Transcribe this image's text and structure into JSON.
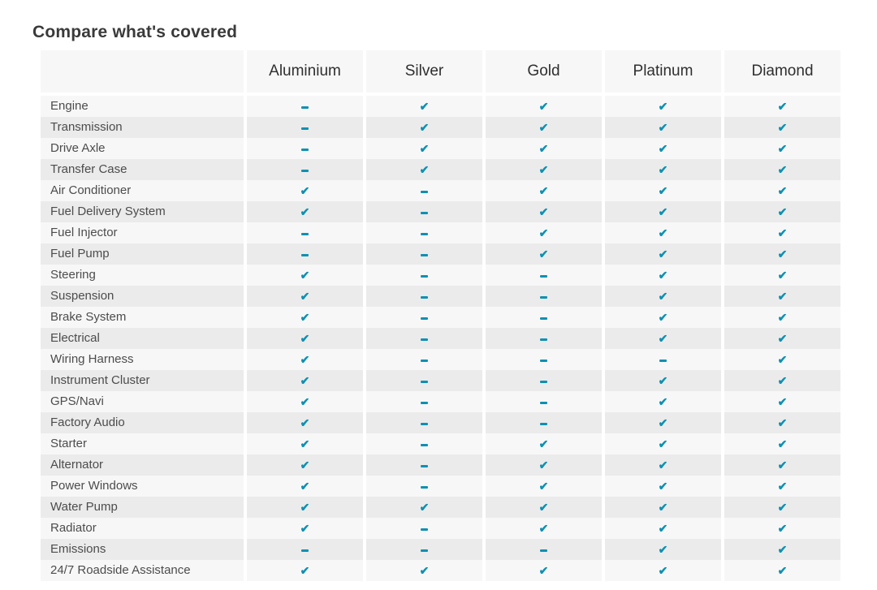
{
  "page": {
    "title": "Compare what's covered"
  },
  "accent_color": "#0E90B2",
  "legend": {
    "check_means": "covered",
    "dash_means": "not covered"
  },
  "table": {
    "columns": [
      "Aluminium",
      "Silver",
      "Gold",
      "Platinum",
      "Diamond"
    ],
    "rows": [
      {
        "label": "Engine",
        "values": [
          "dash",
          "check",
          "check",
          "check",
          "check"
        ]
      },
      {
        "label": "Transmission",
        "values": [
          "dash",
          "check",
          "check",
          "check",
          "check"
        ]
      },
      {
        "label": "Drive Axle",
        "values": [
          "dash",
          "check",
          "check",
          "check",
          "check"
        ]
      },
      {
        "label": "Transfer Case",
        "values": [
          "dash",
          "check",
          "check",
          "check",
          "check"
        ]
      },
      {
        "label": "Air Conditioner",
        "values": [
          "check",
          "dash",
          "check",
          "check",
          "check"
        ]
      },
      {
        "label": "Fuel Delivery System",
        "values": [
          "check",
          "dash",
          "check",
          "check",
          "check"
        ]
      },
      {
        "label": "Fuel Injector",
        "values": [
          "dash",
          "dash",
          "check",
          "check",
          "check"
        ]
      },
      {
        "label": "Fuel Pump",
        "values": [
          "dash",
          "dash",
          "check",
          "check",
          "check"
        ]
      },
      {
        "label": "Steering",
        "values": [
          "check",
          "dash",
          "dash",
          "check",
          "check"
        ]
      },
      {
        "label": "Suspension",
        "values": [
          "check",
          "dash",
          "dash",
          "check",
          "check"
        ]
      },
      {
        "label": "Brake System",
        "values": [
          "check",
          "dash",
          "dash",
          "check",
          "check"
        ]
      },
      {
        "label": "Electrical",
        "values": [
          "check",
          "dash",
          "dash",
          "check",
          "check"
        ]
      },
      {
        "label": "Wiring Harness",
        "values": [
          "check",
          "dash",
          "dash",
          "dash",
          "check"
        ]
      },
      {
        "label": "Instrument Cluster",
        "values": [
          "check",
          "dash",
          "dash",
          "check",
          "check"
        ]
      },
      {
        "label": "GPS/Navi",
        "values": [
          "check",
          "dash",
          "dash",
          "check",
          "check"
        ]
      },
      {
        "label": "Factory Audio",
        "values": [
          "check",
          "dash",
          "dash",
          "check",
          "check"
        ]
      },
      {
        "label": "Starter",
        "values": [
          "check",
          "dash",
          "check",
          "check",
          "check"
        ]
      },
      {
        "label": "Alternator",
        "values": [
          "check",
          "dash",
          "check",
          "check",
          "check"
        ]
      },
      {
        "label": "Power Windows",
        "values": [
          "check",
          "dash",
          "check",
          "check",
          "check"
        ]
      },
      {
        "label": "Water Pump",
        "values": [
          "check",
          "check",
          "check",
          "check",
          "check"
        ]
      },
      {
        "label": "Radiator",
        "values": [
          "check",
          "dash",
          "check",
          "check",
          "check"
        ]
      },
      {
        "label": "Emissions",
        "values": [
          "dash",
          "dash",
          "dash",
          "check",
          "check"
        ]
      },
      {
        "label": "24/7 Roadside Assistance",
        "values": [
          "check",
          "check",
          "check",
          "check",
          "check"
        ]
      }
    ]
  }
}
